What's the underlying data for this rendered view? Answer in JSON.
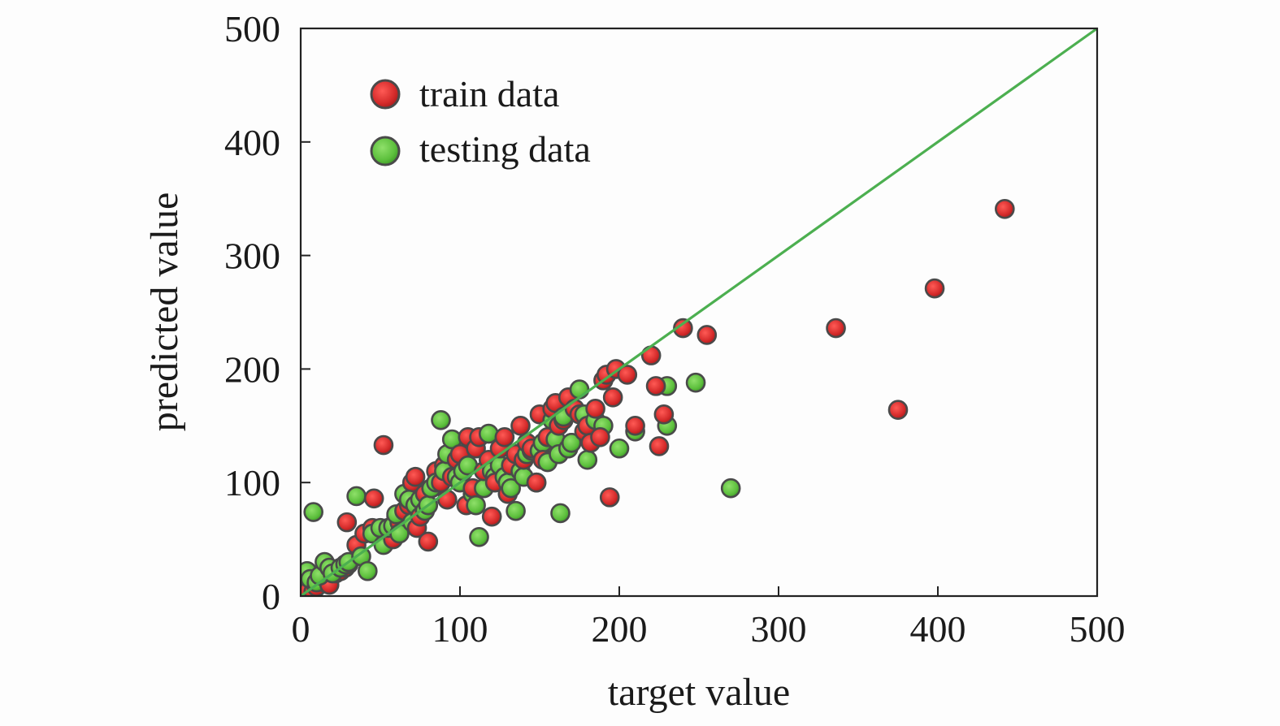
{
  "chart_data": {
    "type": "scatter",
    "xlabel": "target value",
    "ylabel": "predicted value",
    "xlim": [
      0,
      500
    ],
    "ylim": [
      0,
      500
    ],
    "xticks": [
      0,
      100,
      200,
      300,
      400,
      500
    ],
    "yticks": [
      0,
      100,
      200,
      300,
      400,
      500
    ],
    "grid": false,
    "legend_position": "top-left",
    "reference_line": {
      "from": [
        0,
        0
      ],
      "to": [
        500,
        500
      ],
      "color": "#4caf50"
    },
    "series": [
      {
        "name": "train data",
        "color": "#d42a2a",
        "points": [
          [
            2,
            2
          ],
          [
            5,
            5
          ],
          [
            8,
            4
          ],
          [
            10,
            8
          ],
          [
            15,
            12
          ],
          [
            18,
            10
          ],
          [
            22,
            20
          ],
          [
            25,
            22
          ],
          [
            28,
            25
          ],
          [
            30,
            28
          ],
          [
            29,
            65
          ],
          [
            35,
            45
          ],
          [
            40,
            55
          ],
          [
            45,
            60
          ],
          [
            46,
            86
          ],
          [
            50,
            55
          ],
          [
            52,
            133
          ],
          [
            55,
            60
          ],
          [
            58,
            50
          ],
          [
            60,
            70
          ],
          [
            62,
            65
          ],
          [
            65,
            75
          ],
          [
            68,
            80
          ],
          [
            70,
            100
          ],
          [
            72,
            105
          ],
          [
            73,
            60
          ],
          [
            75,
            70
          ],
          [
            78,
            90
          ],
          [
            80,
            48
          ],
          [
            82,
            95
          ],
          [
            85,
            110
          ],
          [
            88,
            100
          ],
          [
            90,
            115
          ],
          [
            92,
            85
          ],
          [
            95,
            105
          ],
          [
            98,
            120
          ],
          [
            100,
            125
          ],
          [
            102,
            110
          ],
          [
            104,
            80
          ],
          [
            105,
            140
          ],
          [
            108,
            95
          ],
          [
            110,
            130
          ],
          [
            112,
            140
          ],
          [
            115,
            110
          ],
          [
            118,
            120
          ],
          [
            120,
            70
          ],
          [
            122,
            100
          ],
          [
            125,
            130
          ],
          [
            128,
            140
          ],
          [
            130,
            90
          ],
          [
            132,
            115
          ],
          [
            135,
            125
          ],
          [
            138,
            150
          ],
          [
            140,
            120
          ],
          [
            142,
            135
          ],
          [
            145,
            130
          ],
          [
            148,
            100
          ],
          [
            150,
            160
          ],
          [
            152,
            120
          ],
          [
            155,
            140
          ],
          [
            158,
            165
          ],
          [
            160,
            170
          ],
          [
            162,
            150
          ],
          [
            165,
            155
          ],
          [
            168,
            175
          ],
          [
            170,
            135
          ],
          [
            172,
            165
          ],
          [
            175,
            160
          ],
          [
            178,
            145
          ],
          [
            180,
            150
          ],
          [
            182,
            135
          ],
          [
            185,
            165
          ],
          [
            188,
            140
          ],
          [
            190,
            190
          ],
          [
            192,
            195
          ],
          [
            194,
            87
          ],
          [
            196,
            175
          ],
          [
            198,
            200
          ],
          [
            205,
            195
          ],
          [
            210,
            150
          ],
          [
            220,
            212
          ],
          [
            223,
            185
          ],
          [
            225,
            132
          ],
          [
            228,
            160
          ],
          [
            240,
            236
          ],
          [
            255,
            230
          ],
          [
            336,
            236
          ],
          [
            375,
            164
          ],
          [
            398,
            271
          ],
          [
            442,
            341
          ]
        ]
      },
      {
        "name": "testing data",
        "color": "#5cbf3c",
        "points": [
          [
            2,
            10
          ],
          [
            4,
            22
          ],
          [
            6,
            15
          ],
          [
            8,
            74
          ],
          [
            10,
            12
          ],
          [
            12,
            18
          ],
          [
            15,
            30
          ],
          [
            18,
            25
          ],
          [
            20,
            20
          ],
          [
            25,
            25
          ],
          [
            28,
            28
          ],
          [
            30,
            30
          ],
          [
            35,
            88
          ],
          [
            38,
            35
          ],
          [
            42,
            22
          ],
          [
            45,
            55
          ],
          [
            50,
            60
          ],
          [
            52,
            45
          ],
          [
            55,
            60
          ],
          [
            58,
            62
          ],
          [
            60,
            72
          ],
          [
            62,
            55
          ],
          [
            65,
            90
          ],
          [
            68,
            85
          ],
          [
            70,
            65
          ],
          [
            72,
            80
          ],
          [
            75,
            85
          ],
          [
            78,
            75
          ],
          [
            80,
            80
          ],
          [
            82,
            95
          ],
          [
            85,
            100
          ],
          [
            88,
            155
          ],
          [
            90,
            110
          ],
          [
            92,
            125
          ],
          [
            95,
            138
          ],
          [
            98,
            105
          ],
          [
            100,
            100
          ],
          [
            102,
            110
          ],
          [
            105,
            115
          ],
          [
            108,
            90
          ],
          [
            110,
            80
          ],
          [
            112,
            52
          ],
          [
            115,
            95
          ],
          [
            118,
            143
          ],
          [
            120,
            110
          ],
          [
            122,
            105
          ],
          [
            125,
            115
          ],
          [
            128,
            105
          ],
          [
            130,
            100
          ],
          [
            132,
            95
          ],
          [
            135,
            75
          ],
          [
            138,
            110
          ],
          [
            140,
            105
          ],
          [
            142,
            125
          ],
          [
            145,
            128
          ],
          [
            148,
            100
          ],
          [
            150,
            128
          ],
          [
            152,
            135
          ],
          [
            155,
            118
          ],
          [
            158,
            155
          ],
          [
            160,
            138
          ],
          [
            162,
            125
          ],
          [
            163,
            73
          ],
          [
            165,
            158
          ],
          [
            168,
            130
          ],
          [
            170,
            135
          ],
          [
            175,
            182
          ],
          [
            178,
            160
          ],
          [
            180,
            120
          ],
          [
            185,
            155
          ],
          [
            190,
            150
          ],
          [
            200,
            130
          ],
          [
            210,
            145
          ],
          [
            230,
            185
          ],
          [
            230,
            150
          ],
          [
            248,
            188
          ],
          [
            270,
            95
          ]
        ]
      }
    ]
  }
}
